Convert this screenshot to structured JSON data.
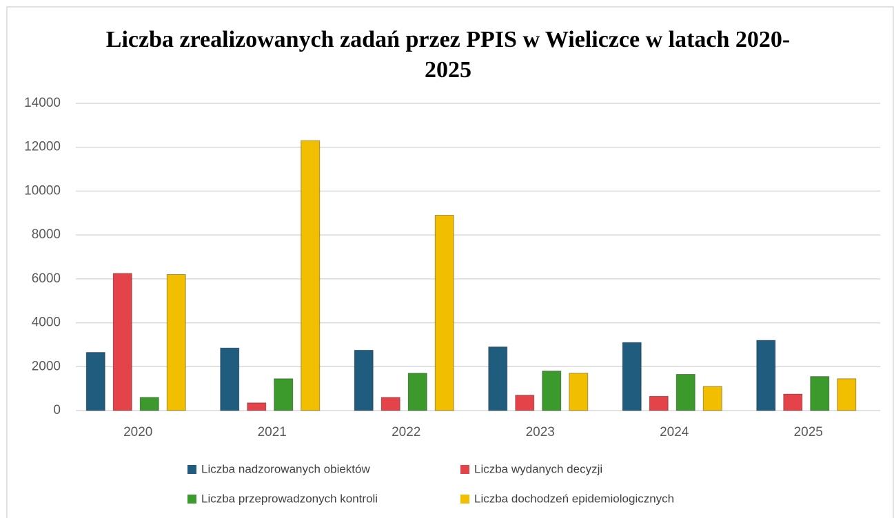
{
  "chart_data": {
    "type": "bar",
    "title": "Liczba zrealizowanych zadań przez PPIS w Wieliczce w latach 2020-2025",
    "categories": [
      "2020",
      "2021",
      "2022",
      "2023",
      "2024",
      "2025"
    ],
    "series": [
      {
        "name": "Liczba nadzorowanych obiektów",
        "color": "#1f5c7e",
        "values": [
          2650,
          2850,
          2750,
          2900,
          3100,
          3200
        ]
      },
      {
        "name": "Liczba wydanych decyzji",
        "color": "#e5434a",
        "values": [
          6250,
          350,
          600,
          700,
          650,
          750
        ]
      },
      {
        "name": "Liczba przeprowadzonych kontroli",
        "color": "#3b9a2b",
        "values": [
          600,
          1450,
          1700,
          1800,
          1650,
          1550
        ]
      },
      {
        "name": "Liczba dochodzeń epidemiologicznych",
        "color": "#f2bf00",
        "values": [
          6200,
          12300,
          8900,
          1700,
          1100,
          1450
        ]
      }
    ],
    "ylim": [
      0,
      14000
    ],
    "yticks": [
      0,
      2000,
      4000,
      6000,
      8000,
      10000,
      12000,
      14000
    ],
    "grid": true
  }
}
